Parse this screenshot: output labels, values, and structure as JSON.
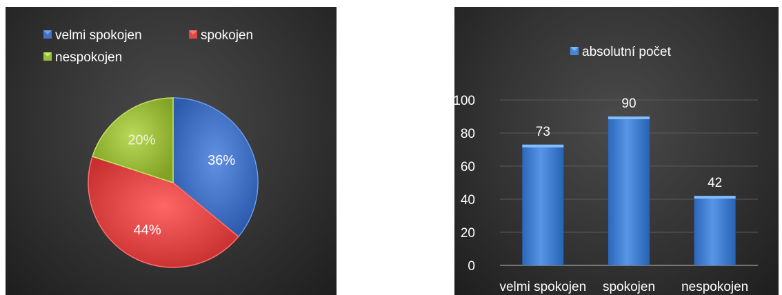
{
  "chart_data": [
    {
      "type": "pie",
      "legend_position": "top",
      "categories": [
        "velmi spokojen",
        "spokojen",
        "nespokojen"
      ],
      "values": [
        36,
        44,
        20
      ],
      "data_labels": [
        "36%",
        "44%",
        "20%"
      ],
      "colors": [
        "#4472c4",
        "#e04848",
        "#9bbb3c"
      ]
    },
    {
      "type": "bar",
      "legend_position": "top",
      "categories": [
        "velmi spokojen",
        "spokojen",
        "nespokojen"
      ],
      "series": [
        {
          "name": "absolutní počet",
          "values": [
            73,
            90,
            42
          ]
        }
      ],
      "ylim": [
        0,
        100
      ],
      "yticks": [
        0,
        20,
        40,
        60,
        80,
        100
      ],
      "grid": true,
      "colors": [
        "#4a86d8"
      ]
    }
  ]
}
